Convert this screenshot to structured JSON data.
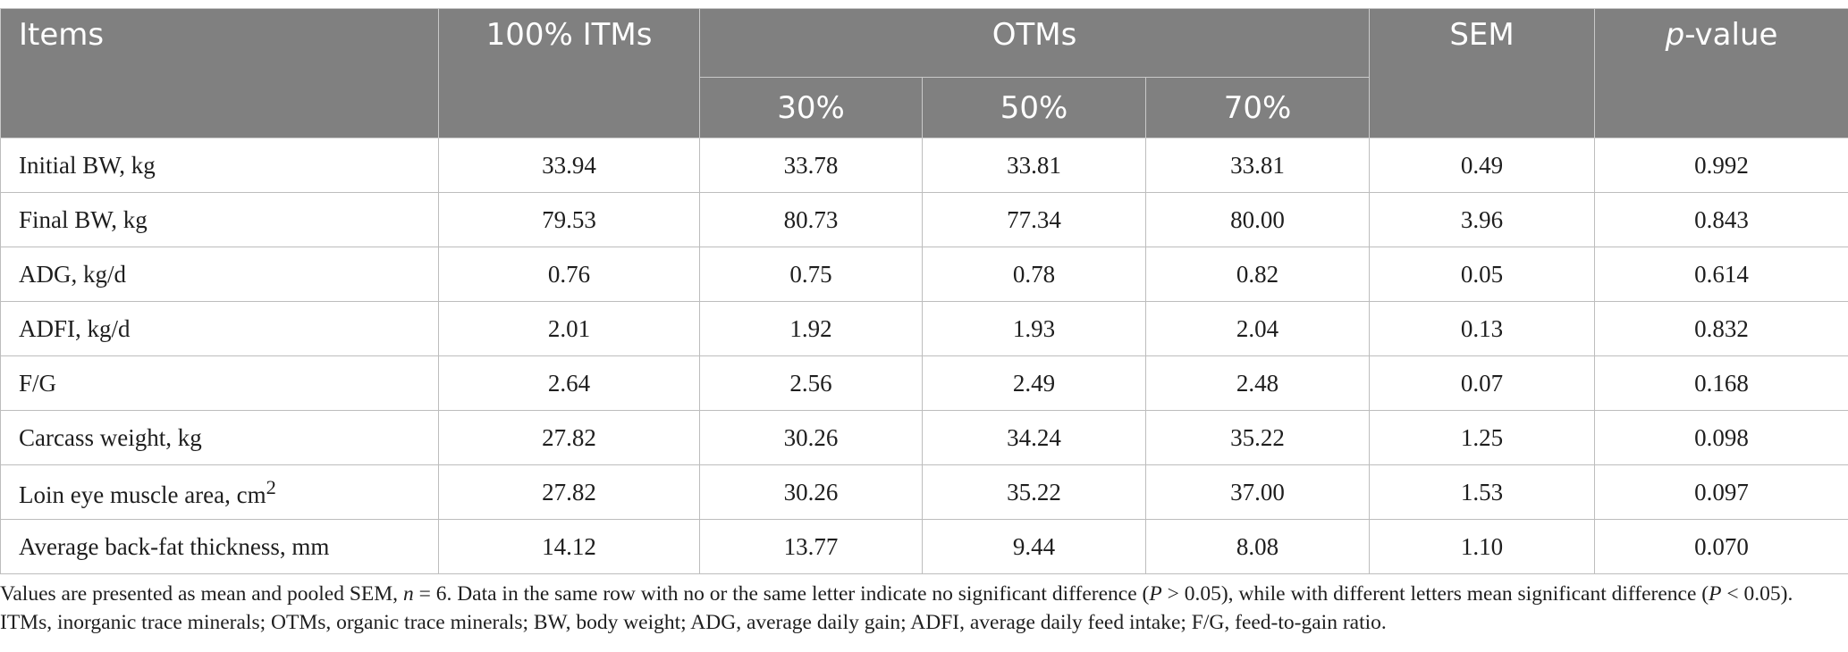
{
  "table": {
    "header": {
      "items": "Items",
      "itms": "100% ITMs",
      "otms": "OTMs",
      "sem": "SEM",
      "p_value_italic": "p",
      "p_value_rest": "-value",
      "sub_30": "30%",
      "sub_50": "50%",
      "sub_70": "70%"
    },
    "rows": [
      {
        "item": "Initial BW, kg",
        "itm": "33.94",
        "o30": "33.78",
        "o50": "33.81",
        "o70": "33.81",
        "sem": "0.49",
        "p": "0.992"
      },
      {
        "item": "Final BW, kg",
        "itm": "79.53",
        "o30": "80.73",
        "o50": "77.34",
        "o70": "80.00",
        "sem": "3.96",
        "p": "0.843"
      },
      {
        "item": "ADG, kg/d",
        "itm": "0.76",
        "o30": "0.75",
        "o50": "0.78",
        "o70": "0.82",
        "sem": "0.05",
        "p": "0.614"
      },
      {
        "item": "ADFI, kg/d",
        "itm": "2.01",
        "o30": "1.92",
        "o50": "1.93",
        "o70": "2.04",
        "sem": "0.13",
        "p": "0.832"
      },
      {
        "item": "F/G",
        "itm": "2.64",
        "o30": "2.56",
        "o50": "2.49",
        "o70": "2.48",
        "sem": "0.07",
        "p": "0.168"
      },
      {
        "item": "Carcass weight, kg",
        "itm": "27.82",
        "o30": "30.26",
        "o50": "34.24",
        "o70": "35.22",
        "sem": "1.25",
        "p": "0.098"
      },
      {
        "item": "Loin eye muscle area, cm",
        "item_sup": "2",
        "itm": "27.82",
        "o30": "30.26",
        "o50": "35.22",
        "o70": "37.00",
        "sem": "1.53",
        "p": "0.097"
      },
      {
        "item": "Average back-fat thickness, mm",
        "itm": "14.12",
        "o30": "13.77",
        "o50": "9.44",
        "o70": "8.08",
        "sem": "1.10",
        "p": "0.070"
      }
    ]
  },
  "footnote": {
    "s1": "Values are presented as mean and pooled SEM, ",
    "s1_n": "n",
    "s2": " = 6. Data in the same row with no or the same letter indicate no significant difference (",
    "s2_p": "P",
    "s3": " > 0.05), while with different letters mean significant difference (",
    "s3_p": "P",
    "s4": " < 0.05). ITMs, inorganic trace minerals; OTMs, organic trace minerals; BW, body weight; ADG, average daily gain; ADFI, average daily feed intake; F/G, feed-to-gain ratio."
  }
}
